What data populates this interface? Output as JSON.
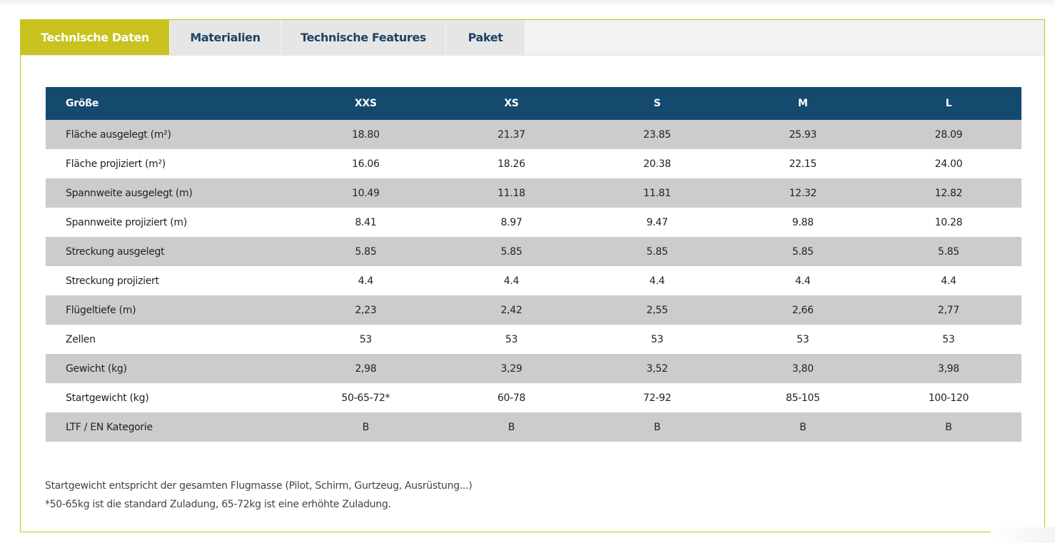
{
  "tabs": [
    {
      "label": "Technische Daten",
      "active": true
    },
    {
      "label": "Materialien",
      "active": false
    },
    {
      "label": "Technische Features",
      "active": false
    },
    {
      "label": "Paket",
      "active": false
    }
  ],
  "table": {
    "header": [
      "Größe",
      "XXS",
      "XS",
      "S",
      "M",
      "L"
    ],
    "rows": [
      [
        "Fläche ausgelegt (m²)",
        "18.80",
        "21.37",
        "23.85",
        "25.93",
        "28.09"
      ],
      [
        "Fläche projiziert (m²)",
        "16.06",
        "18.26",
        "20.38",
        "22.15",
        "24.00"
      ],
      [
        "Spannweite ausgelegt (m)",
        "10.49",
        "11.18",
        "11.81",
        "12.32",
        "12.82"
      ],
      [
        "Spannweite projiziert (m)",
        "8.41",
        "8.97",
        "9.47",
        "9.88",
        "10.28"
      ],
      [
        "Streckung ausgelegt",
        "5.85",
        "5.85",
        "5.85",
        "5.85",
        "5.85"
      ],
      [
        "Streckung projiziert",
        "4.4",
        "4.4",
        "4.4",
        "4.4",
        "4.4"
      ],
      [
        "Flügeltiefe (m)",
        "2,23",
        "2,42",
        "2,55",
        "2,66",
        "2,77"
      ],
      [
        "Zellen",
        "53",
        "53",
        "53",
        "53",
        "53"
      ],
      [
        "Gewicht (kg)",
        "2,98",
        "3,29",
        "3,52",
        "3,80",
        "3,98"
      ],
      [
        "Startgewicht (kg)",
        "50-65-72*",
        "60-78",
        "72-92",
        "85-105",
        "100-120"
      ],
      [
        "LTF / EN Kategorie",
        "B",
        "B",
        "B",
        "B",
        "B"
      ]
    ]
  },
  "notes": [
    "Startgewicht entspricht der gesamten Flugmasse (Pilot, Schirm, Gurtzeug, Ausrüstung...)",
    "*50-65kg ist die standard Zuladung, 65-72kg ist eine erhöhte Zuladung."
  ],
  "colors": {
    "accent": "#c9c21f",
    "header_bg": "#144a6e",
    "tab_text": "#1d4466",
    "row_shaded": "#cccccc"
  }
}
